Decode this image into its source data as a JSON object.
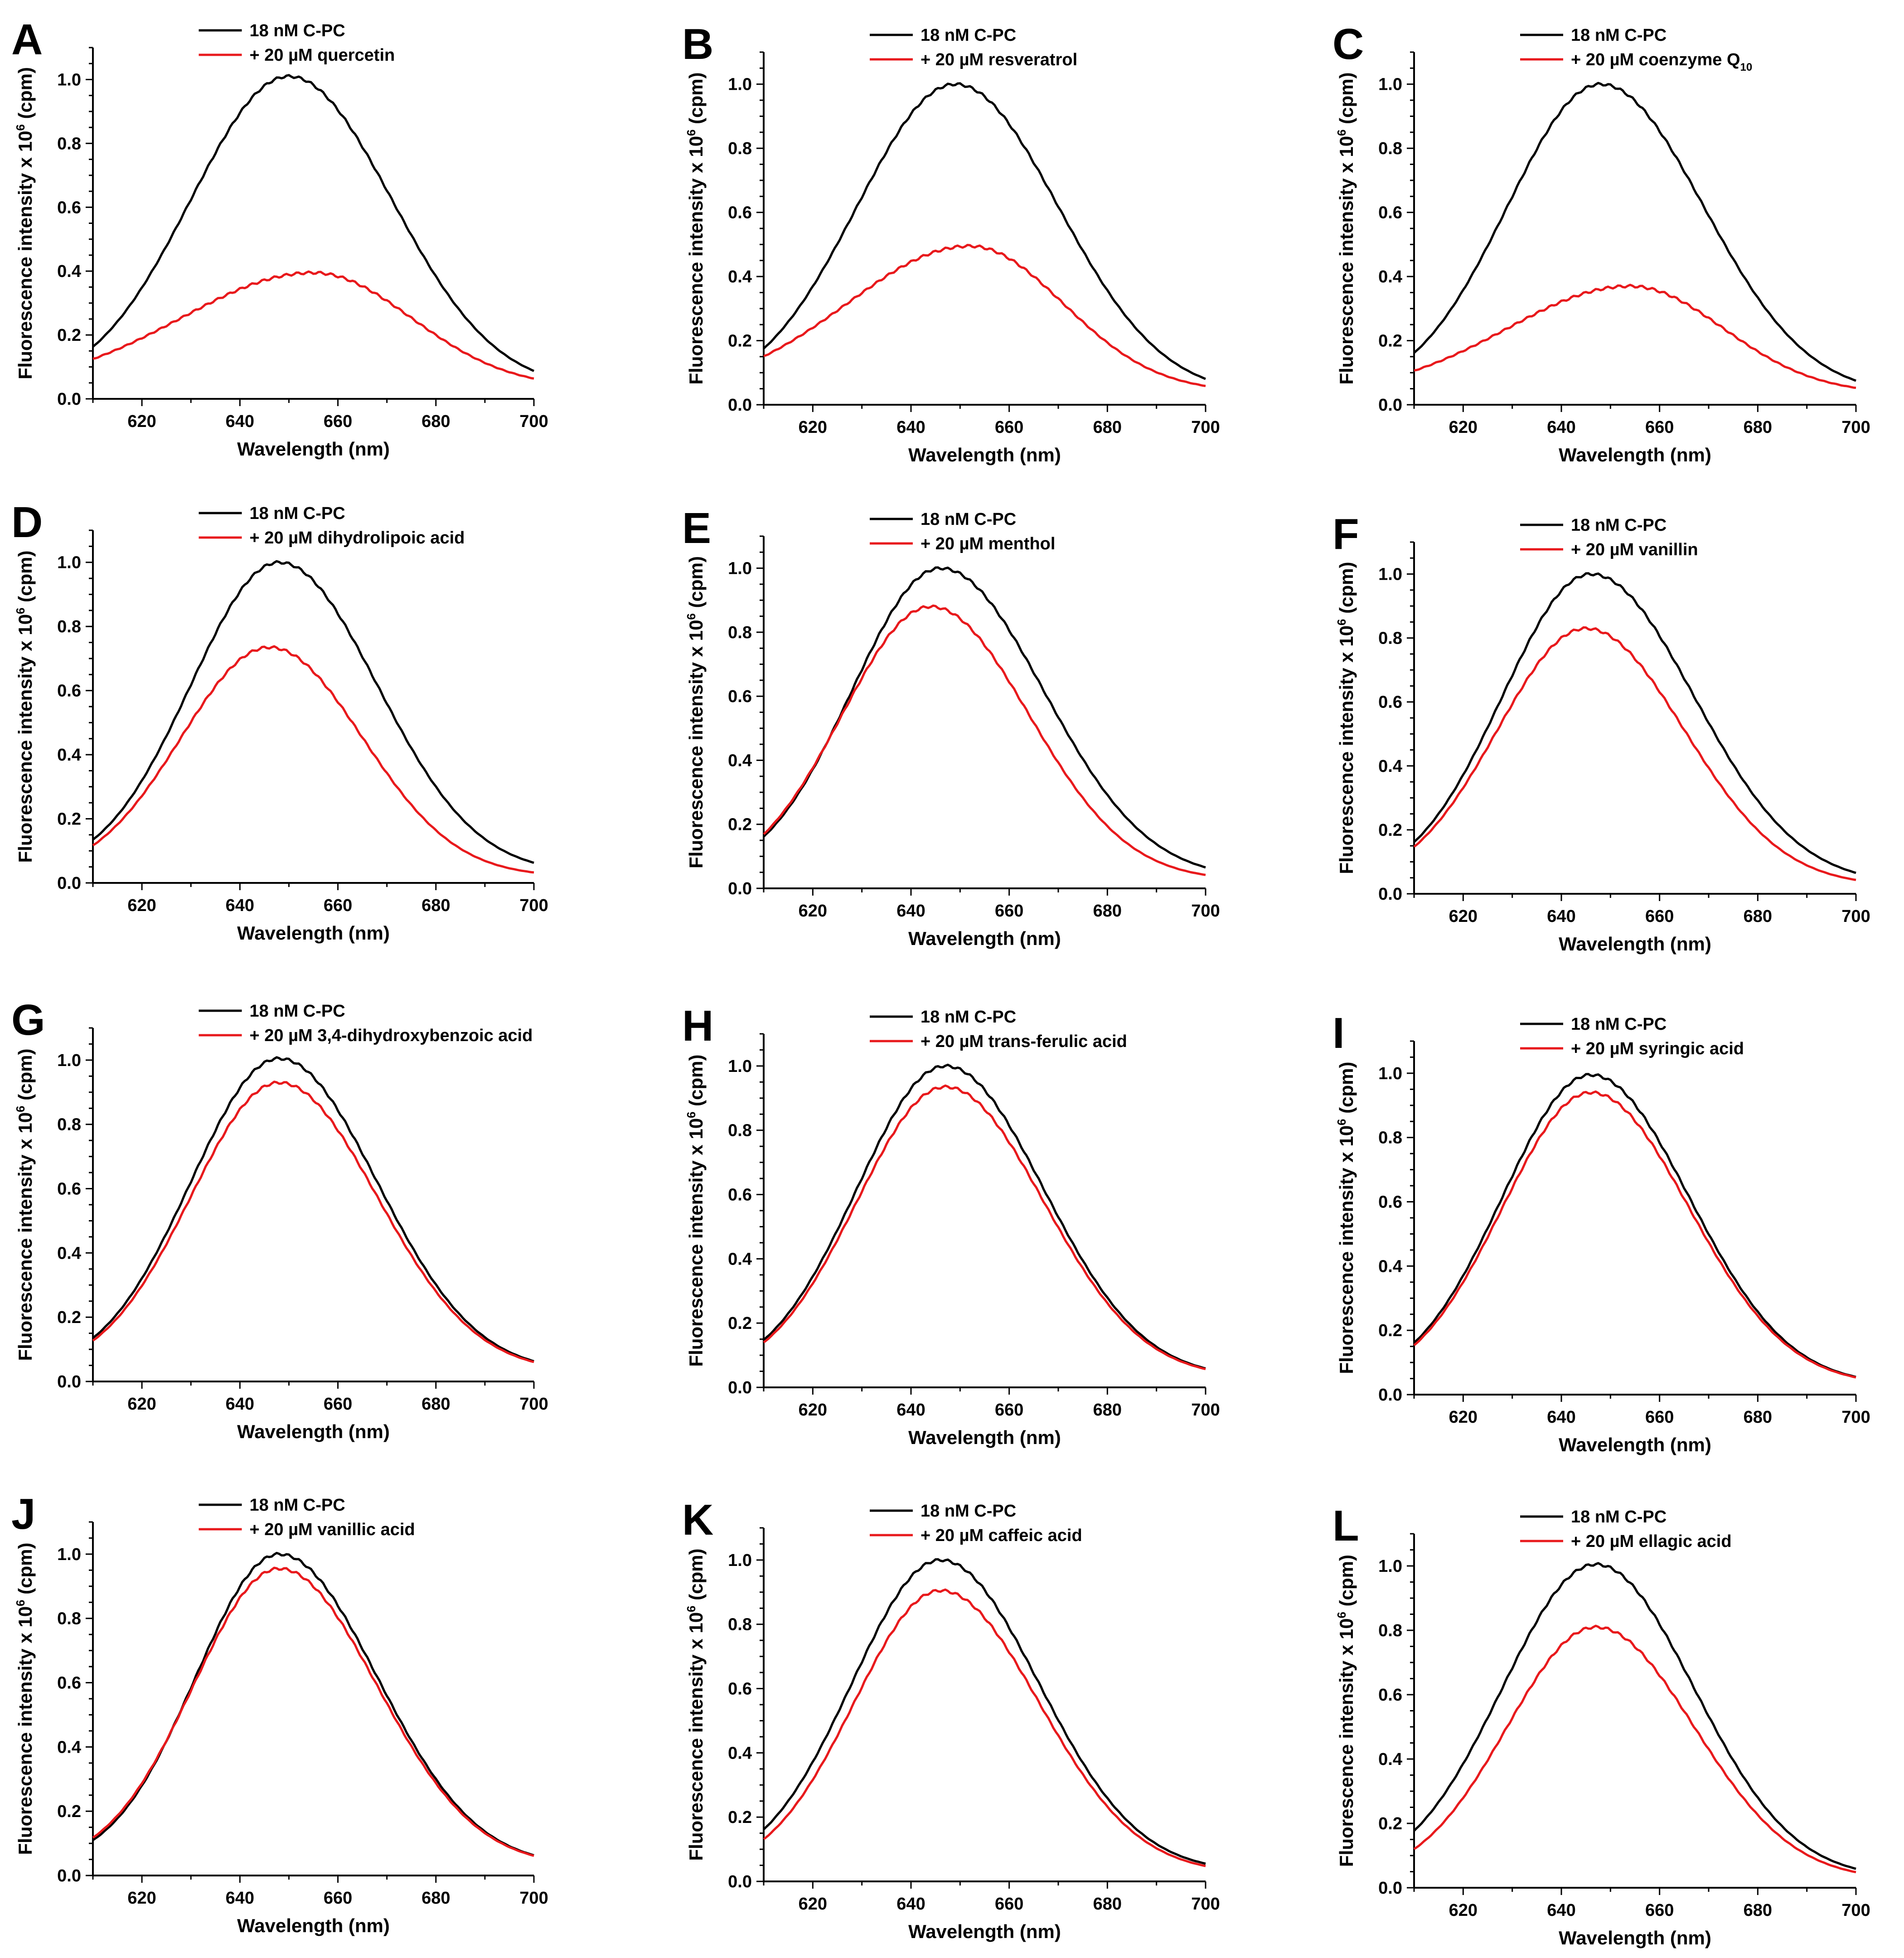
{
  "figure": {
    "background": "#ffffff",
    "control_color": "#000000",
    "treatment_color": "#e8191c"
  },
  "chart_data": [
    {
      "panel": "A",
      "type": "line",
      "xlabel": "Wavelength (nm)",
      "ylabel": "Fluorescence intensity x 10",
      "ylabel_exp": "6",
      "ylabel_unit": " (cpm)",
      "xlim": [
        610,
        700
      ],
      "ylim": [
        0,
        1.1
      ],
      "xticks": [
        "620",
        "640",
        "660",
        "680",
        "700"
      ],
      "yticks": [
        "0.0",
        "0.2",
        "0.4",
        "0.6",
        "0.8",
        "1.0"
      ],
      "legend": {
        "control": "18 nM C-PC",
        "treatment": "+ 20  µM quercetin",
        "treatment_sub": ""
      },
      "series": [
        {
          "name": "18 nM C-PC",
          "color": "#000000",
          "peak": 650,
          "amp": 1.01,
          "sl": 20,
          "sr": 21,
          "base": 0.03
        },
        {
          "name": "+ 20 µM quercetin",
          "color": "#e8191c",
          "peak": 655,
          "amp": 0.395,
          "sl": 27,
          "sr": 20,
          "base": 0.035
        }
      ]
    },
    {
      "panel": "B",
      "type": "line",
      "xlabel": "Wavelength (nm)",
      "ylabel": "Fluorescence intensity x 10",
      "ylabel_exp": "6",
      "ylabel_unit": " (cpm)",
      "xlim": [
        610,
        700
      ],
      "ylim": [
        0,
        1.1
      ],
      "xticks": [
        "620",
        "640",
        "660",
        "680",
        "700"
      ],
      "yticks": [
        "0.0",
        "0.2",
        "0.4",
        "0.6",
        "0.8",
        "1.0"
      ],
      "legend": {
        "control": "18 nM C-PC",
        "treatment": "+ 20  µM resveratrol",
        "treatment_sub": ""
      },
      "series": [
        {
          "name": "18 nM C-PC",
          "color": "#000000",
          "peak": 649,
          "amp": 1.0,
          "sl": 20,
          "sr": 21,
          "base": 0.03
        },
        {
          "name": "+ 20 µM resveratrol",
          "color": "#e8191c",
          "peak": 652,
          "amp": 0.495,
          "sl": 25,
          "sr": 19,
          "base": 0.04
        }
      ]
    },
    {
      "panel": "C",
      "type": "line",
      "xlabel": "Wavelength (nm)",
      "ylabel": "Fluorescence intensity x 10",
      "ylabel_exp": "6",
      "ylabel_unit": " (cpm)",
      "xlim": [
        610,
        700
      ],
      "ylim": [
        0,
        1.1
      ],
      "xticks": [
        "620",
        "640",
        "660",
        "680",
        "700"
      ],
      "yticks": [
        "0.0",
        "0.2",
        "0.4",
        "0.6",
        "0.8",
        "1.0"
      ],
      "legend": {
        "control": "18 nM C-PC",
        "treatment": "+ 20  µM coenzyme Q",
        "treatment_sub": "10"
      },
      "series": [
        {
          "name": "18 nM C-PC",
          "color": "#000000",
          "peak": 648,
          "amp": 1.0,
          "sl": 19,
          "sr": 21,
          "base": 0.03
        },
        {
          "name": "+ 20 µM coenzyme Q10",
          "color": "#e8191c",
          "peak": 654,
          "amp": 0.37,
          "sl": 25,
          "sr": 19,
          "base": 0.035
        }
      ]
    },
    {
      "panel": "D",
      "type": "line",
      "xlabel": "Wavelength (nm)",
      "ylabel": "Fluorescence intensity x 10",
      "ylabel_exp": "6",
      "ylabel_unit": " (cpm)",
      "xlim": [
        610,
        700
      ],
      "ylim": [
        0,
        1.1
      ],
      "xticks": [
        "620",
        "640",
        "660",
        "680",
        "700"
      ],
      "yticks": [
        "0.0",
        "0.2",
        "0.4",
        "0.6",
        "0.8",
        "1.0"
      ],
      "legend": {
        "control": "18 nM C-PC",
        "treatment": "+ 20  µM dihydrolipoic acid",
        "treatment_sub": ""
      },
      "series": [
        {
          "name": "18 nM C-PC",
          "color": "#000000",
          "peak": 648,
          "amp": 1.0,
          "sl": 18,
          "sr": 20,
          "base": 0.03
        },
        {
          "name": "+ 20 µM dihydrolipoic acid",
          "color": "#e8191c",
          "peak": 646,
          "amp": 0.735,
          "sl": 18,
          "sr": 19,
          "base": 0.02
        }
      ]
    },
    {
      "panel": "E",
      "type": "line",
      "xlabel": "Wavelength (nm)",
      "ylabel": "Fluorescence intensity x 10",
      "ylabel_exp": "6",
      "ylabel_unit": " (cpm)",
      "xlim": [
        610,
        700
      ],
      "ylim": [
        0,
        1.1
      ],
      "xticks": [
        "620",
        "640",
        "660",
        "680",
        "700"
      ],
      "yticks": [
        "0.0",
        "0.2",
        "0.4",
        "0.6",
        "0.8",
        "1.0"
      ],
      "legend": {
        "control": "18 nM C-PC",
        "treatment": "+ 20  µM menthol",
        "treatment_sub": ""
      },
      "series": [
        {
          "name": "18 nM C-PC",
          "color": "#000000",
          "peak": 646,
          "amp": 1.0,
          "sl": 18,
          "sr": 21,
          "base": 0.03
        },
        {
          "name": "+ 20 µM menthol",
          "color": "#e8191c",
          "peak": 644,
          "amp": 0.88,
          "sl": 18,
          "sr": 20,
          "base": 0.025
        }
      ]
    },
    {
      "panel": "F",
      "type": "line",
      "xlabel": "Wavelength (nm)",
      "ylabel": "Fluorescence intensity x 10",
      "ylabel_exp": "6",
      "ylabel_unit": " (cpm)",
      "xlim": [
        610,
        700
      ],
      "ylim": [
        0,
        1.1
      ],
      "xticks": [
        "620",
        "640",
        "660",
        "680",
        "700"
      ],
      "yticks": [
        "0.0",
        "0.2",
        "0.4",
        "0.6",
        "0.8",
        "1.0"
      ],
      "legend": {
        "control": "18 nM C-PC",
        "treatment": "+ 20  µM vanillin",
        "treatment_sub": ""
      },
      "series": [
        {
          "name": "18 nM C-PC",
          "color": "#000000",
          "peak": 646,
          "amp": 1.0,
          "sl": 18,
          "sr": 21,
          "base": 0.03
        },
        {
          "name": "+ 20 µM vanillin",
          "color": "#e8191c",
          "peak": 645,
          "amp": 0.83,
          "sl": 18,
          "sr": 20,
          "base": 0.025
        }
      ]
    },
    {
      "panel": "G",
      "type": "line",
      "xlabel": "Wavelength (nm)",
      "ylabel": "Fluorescence intensity x 10",
      "ylabel_exp": "6",
      "ylabel_unit": " (cpm)",
      "xlim": [
        610,
        700
      ],
      "ylim": [
        0,
        1.1
      ],
      "xticks": [
        "620",
        "640",
        "660",
        "680",
        "700"
      ],
      "yticks": [
        "0.0",
        "0.2",
        "0.4",
        "0.6",
        "0.8",
        "1.0"
      ],
      "legend": {
        "control": "18 nM C-PC",
        "treatment": "+ 20  µM 3,4-dihydroxybenzoic acid",
        "treatment_sub": ""
      },
      "series": [
        {
          "name": "18 nM C-PC",
          "color": "#000000",
          "peak": 648,
          "amp": 1.005,
          "sl": 18,
          "sr": 20,
          "base": 0.03
        },
        {
          "name": "+ 20 µM 3,4-dihydroxybenzoic acid",
          "color": "#e8191c",
          "peak": 648,
          "amp": 0.93,
          "sl": 18,
          "sr": 20,
          "base": 0.03
        }
      ]
    },
    {
      "panel": "H",
      "type": "line",
      "xlabel": "Wavelength (nm)",
      "ylabel": "Fluorescence intensity x 10",
      "ylabel_exp": "6",
      "ylabel_unit": " (cpm)",
      "xlim": [
        610,
        700
      ],
      "ylim": [
        0,
        1.1
      ],
      "xticks": [
        "620",
        "640",
        "660",
        "680",
        "700"
      ],
      "yticks": [
        "0.0",
        "0.2",
        "0.4",
        "0.6",
        "0.8",
        "1.0"
      ],
      "legend": {
        "control": "18 nM C-PC",
        "treatment": "+ 20  µM trans-ferulic acid",
        "treatment_sub": ""
      },
      "series": [
        {
          "name": "18 nM C-PC",
          "color": "#000000",
          "peak": 647,
          "amp": 1.0,
          "sl": 18,
          "sr": 20,
          "base": 0.03
        },
        {
          "name": "+ 20 µM trans-ferulic acid",
          "color": "#e8191c",
          "peak": 647,
          "amp": 0.935,
          "sl": 18,
          "sr": 20,
          "base": 0.03
        }
      ]
    },
    {
      "panel": "I",
      "type": "line",
      "xlabel": "Wavelength (nm)",
      "ylabel": "Fluorescence intensity x 10",
      "ylabel_exp": "6",
      "ylabel_unit": " (cpm)",
      "xlim": [
        610,
        700
      ],
      "ylim": [
        0,
        1.1
      ],
      "xticks": [
        "620",
        "640",
        "660",
        "680",
        "700"
      ],
      "yticks": [
        "0.0",
        "0.2",
        "0.4",
        "0.6",
        "0.8",
        "1.0"
      ],
      "legend": {
        "control": "18 nM C-PC",
        "treatment": "+ 20  µM syringic acid",
        "treatment_sub": ""
      },
      "series": [
        {
          "name": "18 nM C-PC",
          "color": "#000000",
          "peak": 646,
          "amp": 0.995,
          "sl": 18,
          "sr": 20,
          "base": 0.03
        },
        {
          "name": "+ 20 µM syringic acid",
          "color": "#e8191c",
          "peak": 646,
          "amp": 0.94,
          "sl": 18,
          "sr": 20,
          "base": 0.03
        }
      ]
    },
    {
      "panel": "J",
      "type": "line",
      "xlabel": "Wavelength (nm)",
      "ylabel": "Fluorescence intensity x 10",
      "ylabel_exp": "6",
      "ylabel_unit": " (cpm)",
      "xlim": [
        610,
        700
      ],
      "ylim": [
        0,
        1.1
      ],
      "xticks": [
        "620",
        "640",
        "660",
        "680",
        "700"
      ],
      "yticks": [
        "0.0",
        "0.2",
        "0.4",
        "0.6",
        "0.8",
        "1.0"
      ],
      "legend": {
        "control": "18 nM C-PC",
        "treatment": "+ 20  µM vanillic acid",
        "treatment_sub": ""
      },
      "series": [
        {
          "name": "18 nM C-PC",
          "color": "#000000",
          "peak": 648,
          "amp": 1.0,
          "sl": 17,
          "sr": 20,
          "base": 0.03
        },
        {
          "name": "+ 20 µM vanillic acid",
          "color": "#e8191c",
          "peak": 648,
          "amp": 0.955,
          "sl": 17.5,
          "sr": 20,
          "base": 0.03
        }
      ]
    },
    {
      "panel": "K",
      "type": "line",
      "xlabel": "Wavelength (nm)",
      "ylabel": "Fluorescence intensity x 10",
      "ylabel_exp": "6",
      "ylabel_unit": " (cpm)",
      "xlim": [
        610,
        700
      ],
      "ylim": [
        0,
        1.1
      ],
      "xticks": [
        "620",
        "640",
        "660",
        "680",
        "700"
      ],
      "yticks": [
        "0.0",
        "0.2",
        "0.4",
        "0.6",
        "0.8",
        "1.0"
      ],
      "legend": {
        "control": "18 nM C-PC",
        "treatment": "+ 20  µM caffeic acid",
        "treatment_sub": ""
      },
      "series": [
        {
          "name": "18 nM C-PC",
          "color": "#000000",
          "peak": 646,
          "amp": 1.0,
          "sl": 18,
          "sr": 20,
          "base": 0.03
        },
        {
          "name": "+ 20 µM caffeic acid",
          "color": "#e8191c",
          "peak": 646,
          "amp": 0.905,
          "sl": 17.5,
          "sr": 20,
          "base": 0.025
        }
      ]
    },
    {
      "panel": "L",
      "type": "line",
      "xlabel": "Wavelength (nm)",
      "ylabel": "Fluorescence intensity x 10",
      "ylabel_exp": "6",
      "ylabel_unit": " (cpm)",
      "xlim": [
        610,
        700
      ],
      "ylim": [
        0,
        1.1
      ],
      "xticks": [
        "620",
        "640",
        "660",
        "680",
        "700"
      ],
      "yticks": [
        "0.0",
        "0.2",
        "0.4",
        "0.6",
        "0.8",
        "1.0"
      ],
      "legend": {
        "control": "18 nM C-PC",
        "treatment": "+ 20  µM ellagic acid",
        "treatment_sub": ""
      },
      "series": [
        {
          "name": "18 nM C-PC",
          "color": "#000000",
          "peak": 647,
          "amp": 1.005,
          "sl": 19,
          "sr": 20,
          "base": 0.03
        },
        {
          "name": "+ 20 µM ellagic acid",
          "color": "#e8191c",
          "peak": 647,
          "amp": 0.81,
          "sl": 18,
          "sr": 20,
          "base": 0.025
        }
      ]
    }
  ]
}
